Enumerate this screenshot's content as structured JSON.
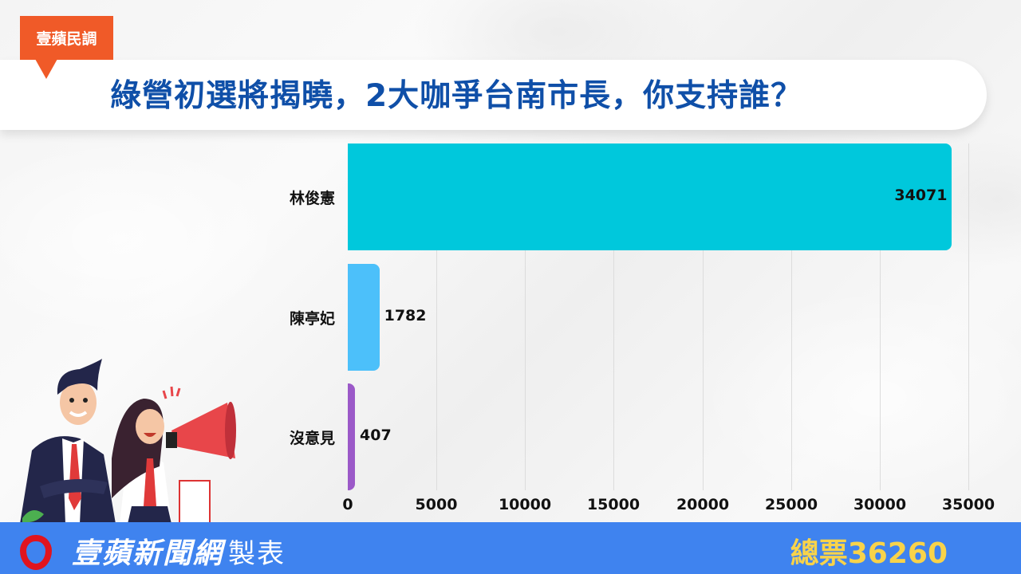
{
  "header": {
    "tag": "壹蘋民調",
    "title": "綠營初選將揭曉，2大咖爭台南市長，你支持誰？"
  },
  "colors": {
    "tag": "#f05a28",
    "title": "#0f4fa8",
    "footer": "#3f83ef",
    "total": "#f8d34a",
    "logo": "#e0141e"
  },
  "chart_data": {
    "type": "bar",
    "orientation": "horizontal",
    "title": "綠營初選將揭曉，2大咖爭台南市長，你支持誰？",
    "categories": [
      "林俊憲",
      "陳亭妃",
      "沒意見"
    ],
    "values": [
      34071,
      1782,
      407
    ],
    "bar_colors": [
      "#00c8dc",
      "#4cc0fa",
      "#9b59c8"
    ],
    "xlabel": "",
    "ylabel": "",
    "xlim": [
      0,
      35000
    ],
    "xticks": [
      "0",
      "5000",
      "10000",
      "15000",
      "20000",
      "25000",
      "30000",
      "35000"
    ],
    "grid": true,
    "data_labels": [
      "34071",
      "1782",
      "407"
    ],
    "total_label": "總票36260"
  },
  "footer": {
    "brand": "壹蘋新聞網",
    "brand_suffix": "製表",
    "total": "總票36260"
  }
}
